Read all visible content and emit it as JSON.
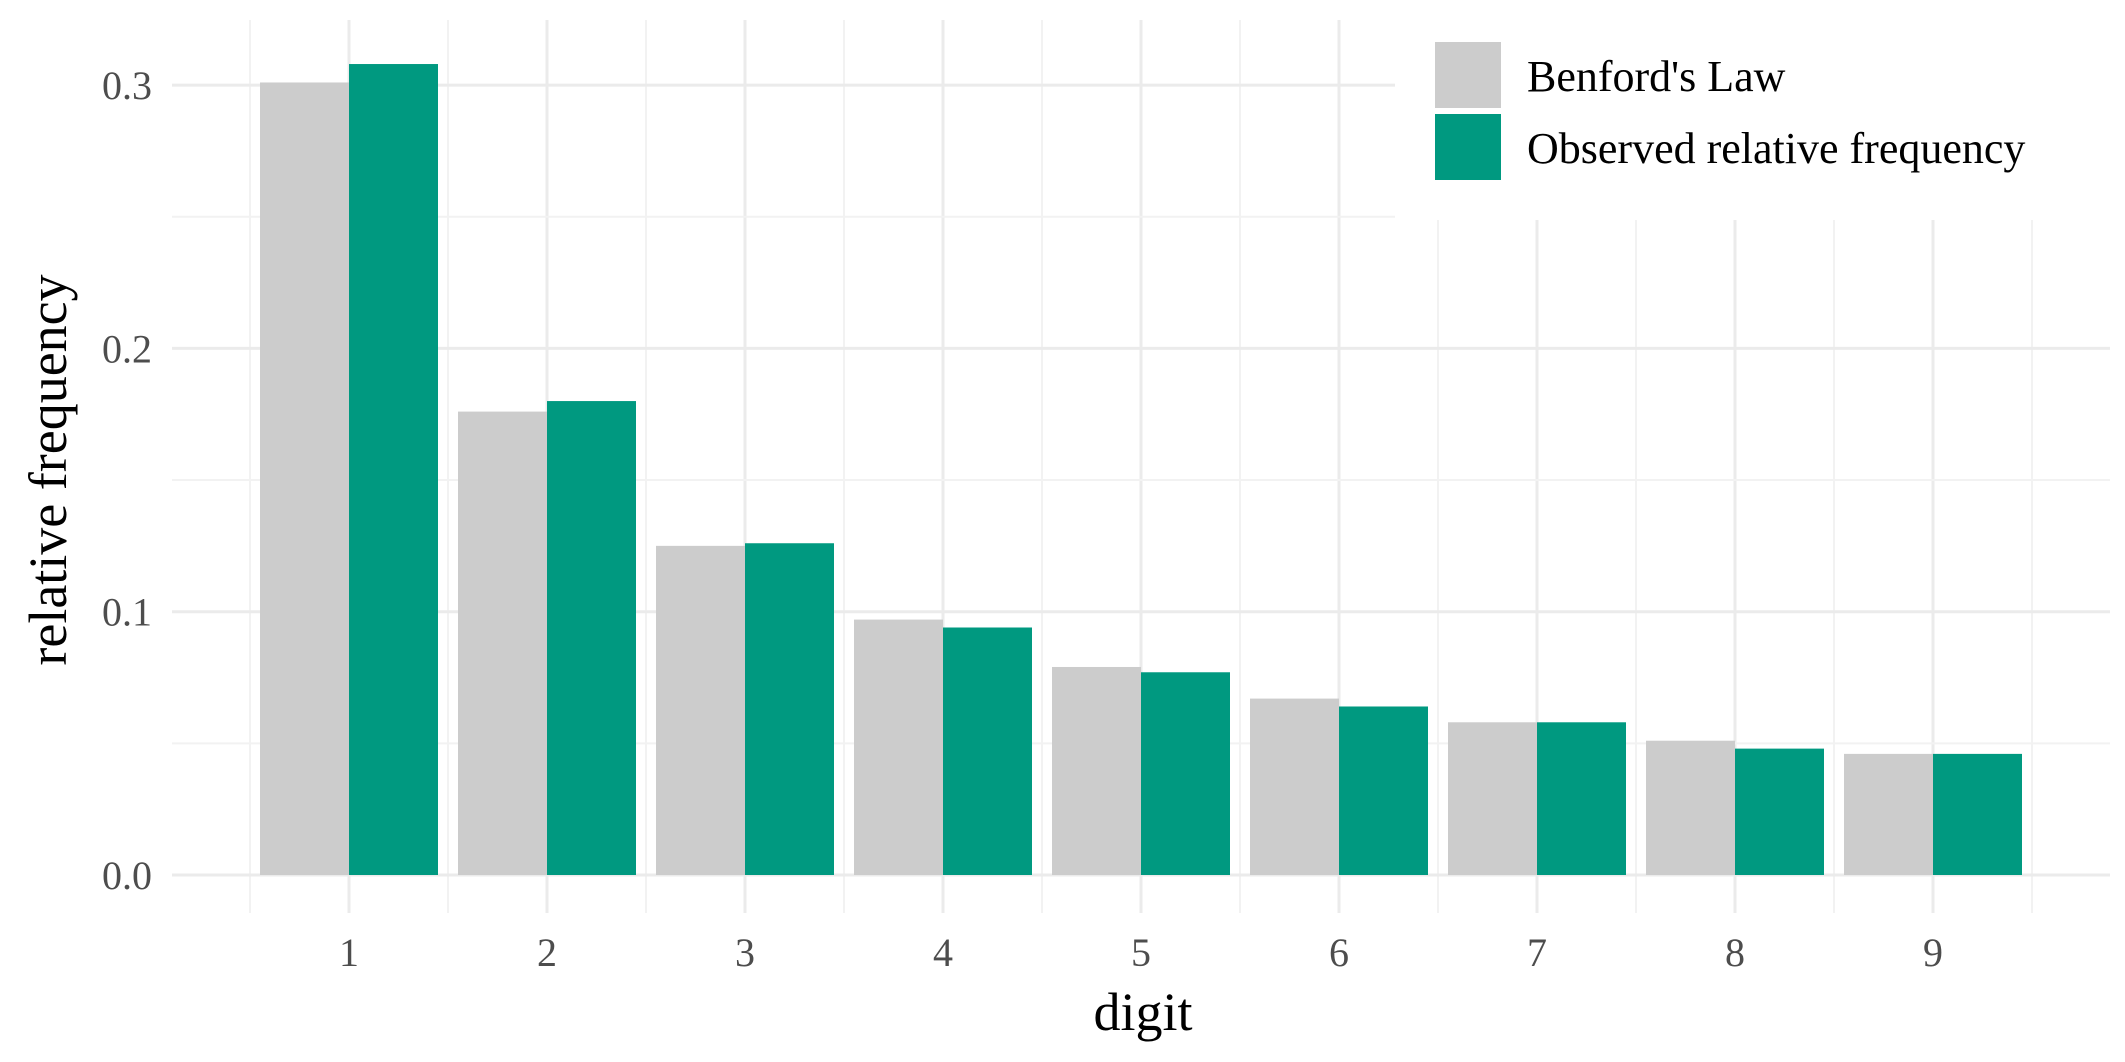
{
  "chart_data": {
    "type": "bar",
    "title": "",
    "xlabel": "digit",
    "ylabel": "relative frequency",
    "categories": [
      "1",
      "2",
      "3",
      "4",
      "5",
      "6",
      "7",
      "8",
      "9"
    ],
    "series": [
      {
        "name": "Benford's Law",
        "color": "#cccccc",
        "values": [
          0.301,
          0.176,
          0.125,
          0.097,
          0.079,
          0.067,
          0.058,
          0.051,
          0.046
        ]
      },
      {
        "name": "Observed relative frequency",
        "color": "#009980",
        "values": [
          0.308,
          0.18,
          0.126,
          0.094,
          0.077,
          0.064,
          0.058,
          0.048,
          0.046
        ]
      }
    ],
    "ylim": [
      0,
      0.3
    ],
    "yticks": [
      "0.0",
      "0.1",
      "0.2",
      "0.3"
    ],
    "ytick_values": [
      0,
      0.1,
      0.2,
      0.3
    ],
    "grid": true,
    "legend_position": "top-right"
  }
}
